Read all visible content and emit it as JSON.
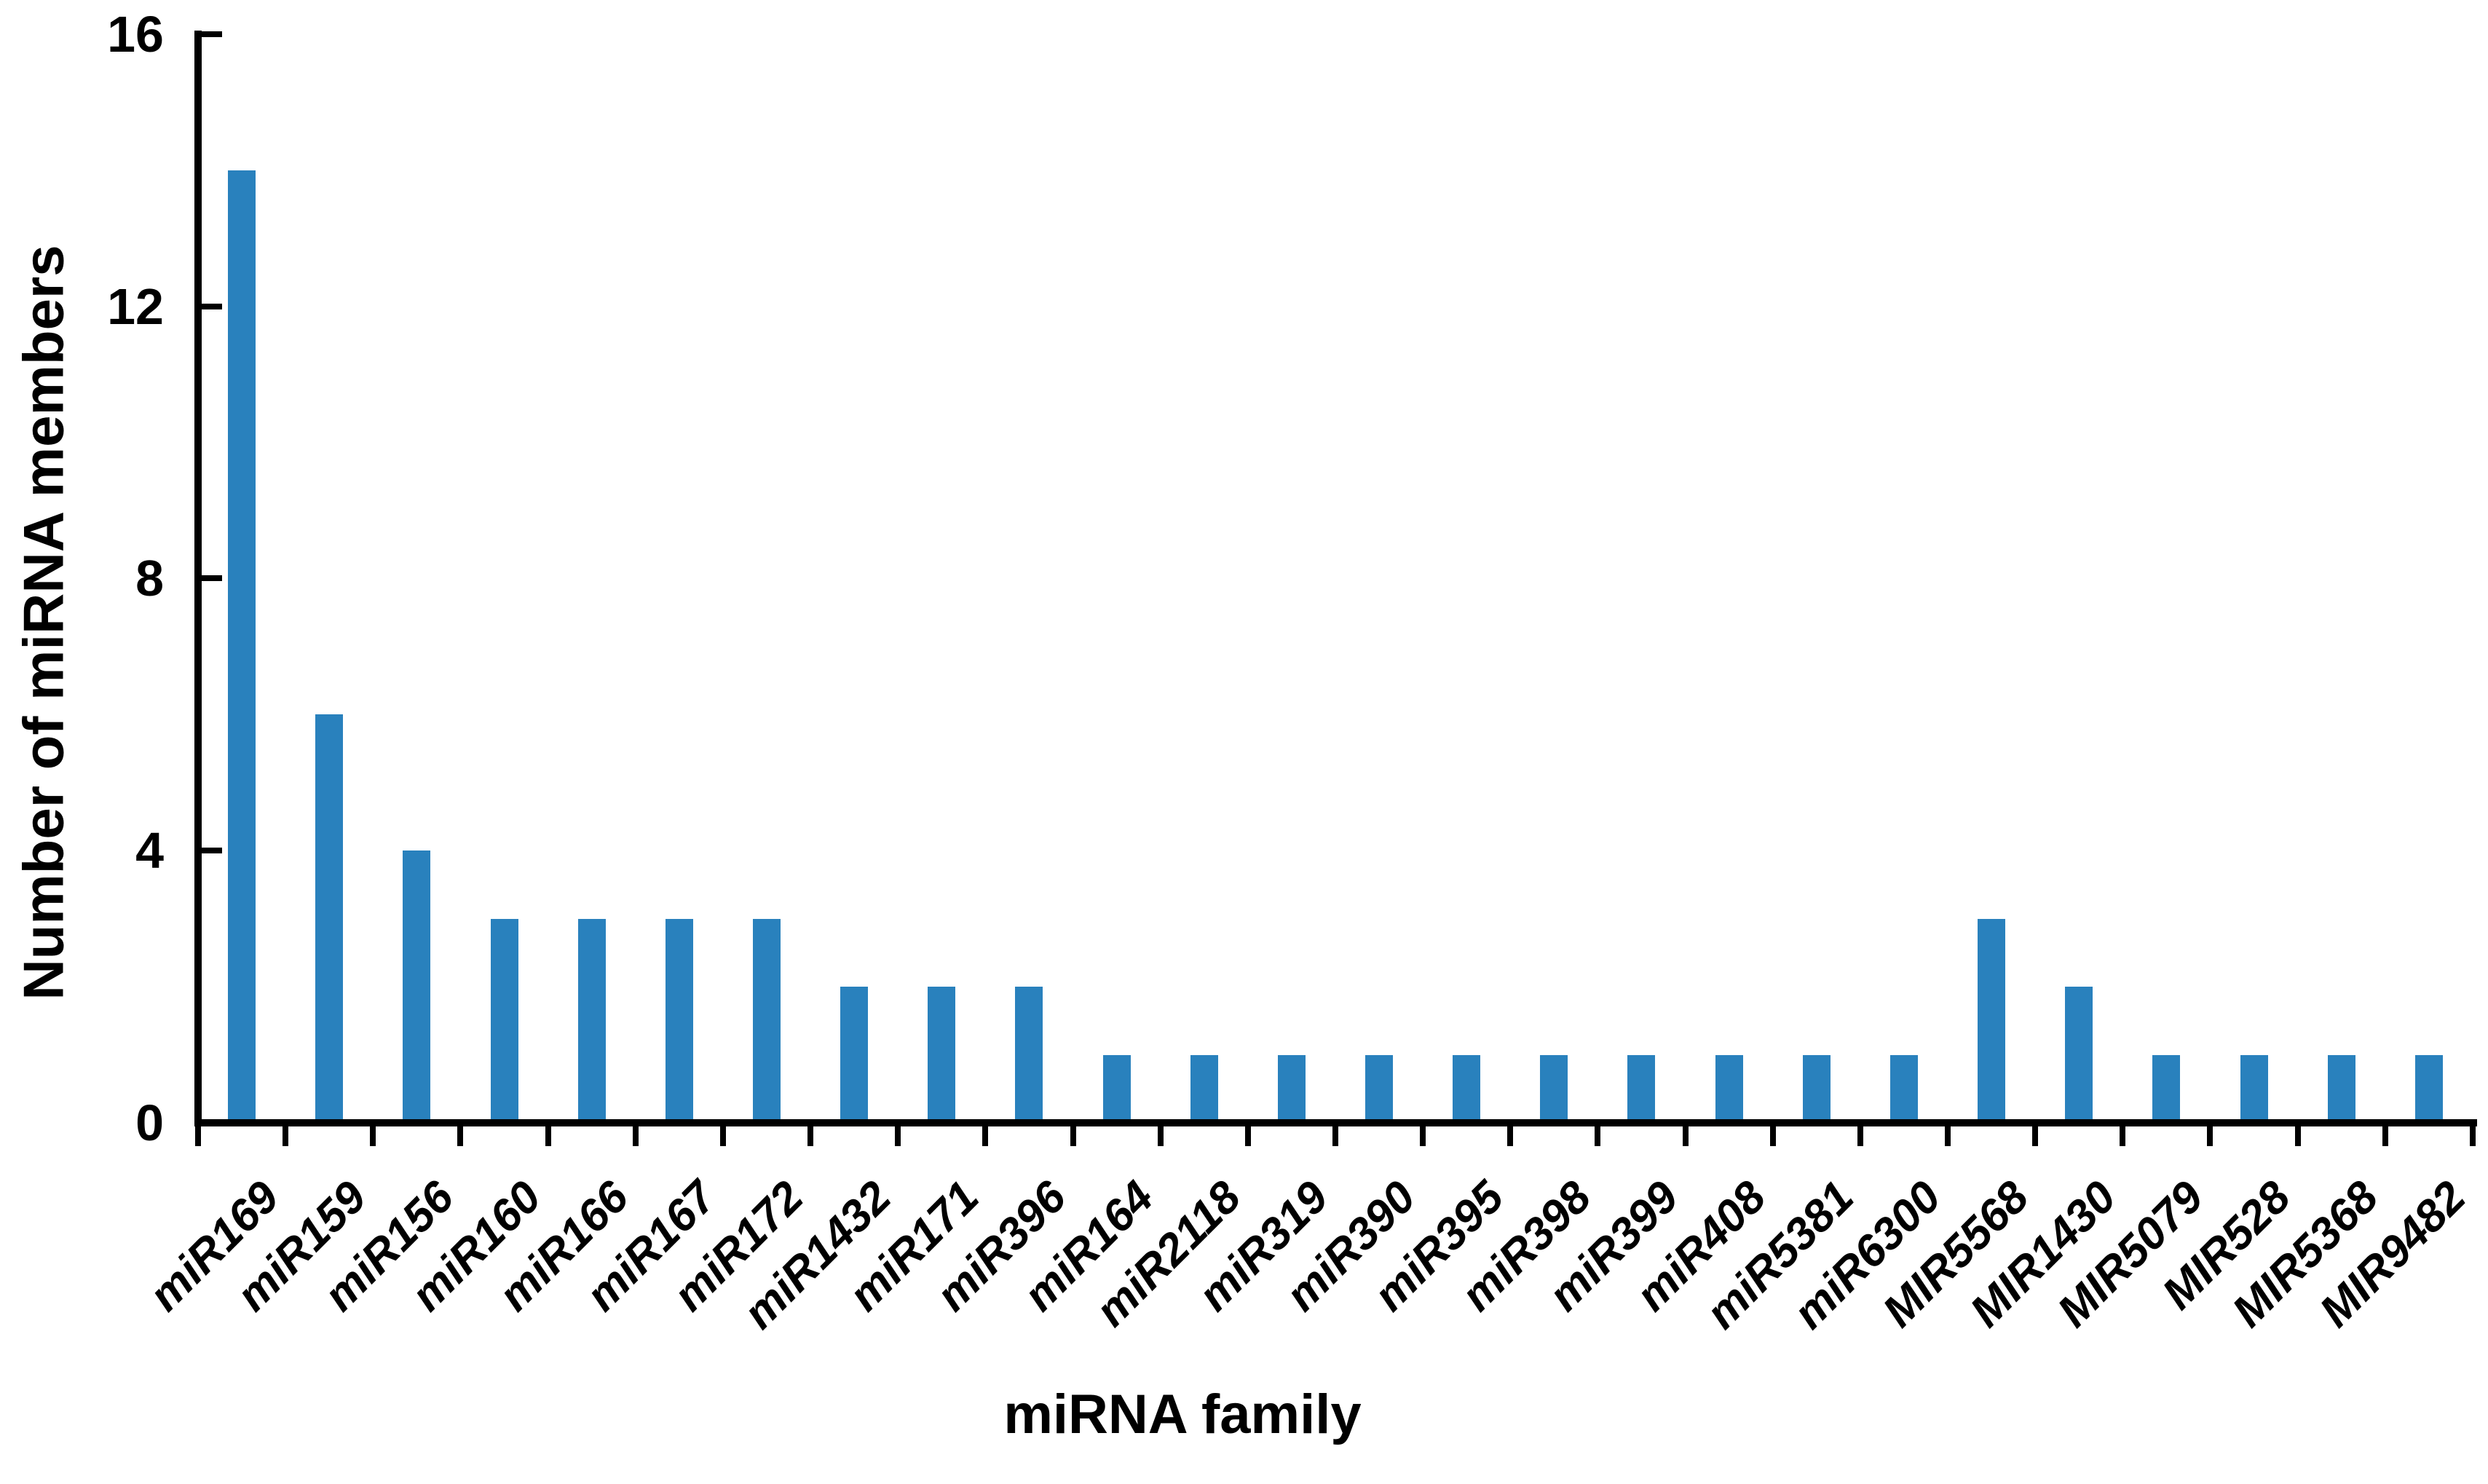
{
  "chart_data": {
    "type": "bar",
    "title": "",
    "xlabel": "miRNA family",
    "ylabel": "Number of miRNA members",
    "categories": [
      "miR169",
      "miR159",
      "miR156",
      "miR160",
      "miR166",
      "miR167",
      "miR172",
      "miR1432",
      "miR171",
      "miR396",
      "miR164",
      "miR2118",
      "miR319",
      "miR390",
      "miR395",
      "miR398",
      "miR399",
      "miR408",
      "miR5381",
      "miR6300",
      "MIR5568",
      "MIR1430",
      "MIR5079",
      "MIR528",
      "MIR5368",
      "MIR9482"
    ],
    "values": [
      14,
      6,
      4,
      3,
      3,
      3,
      3,
      2,
      2,
      2,
      1,
      1,
      1,
      1,
      1,
      1,
      1,
      1,
      1,
      1,
      3,
      2,
      1,
      1,
      1,
      1
    ],
    "ylim": [
      0,
      16
    ],
    "yticks": [
      0,
      4,
      8,
      12,
      16
    ],
    "grid": false,
    "legend_position": "none",
    "bar_color": "#2981BD",
    "axis_color": "#000000",
    "text_color": "#000000",
    "background_color": "#FFFFFF"
  }
}
